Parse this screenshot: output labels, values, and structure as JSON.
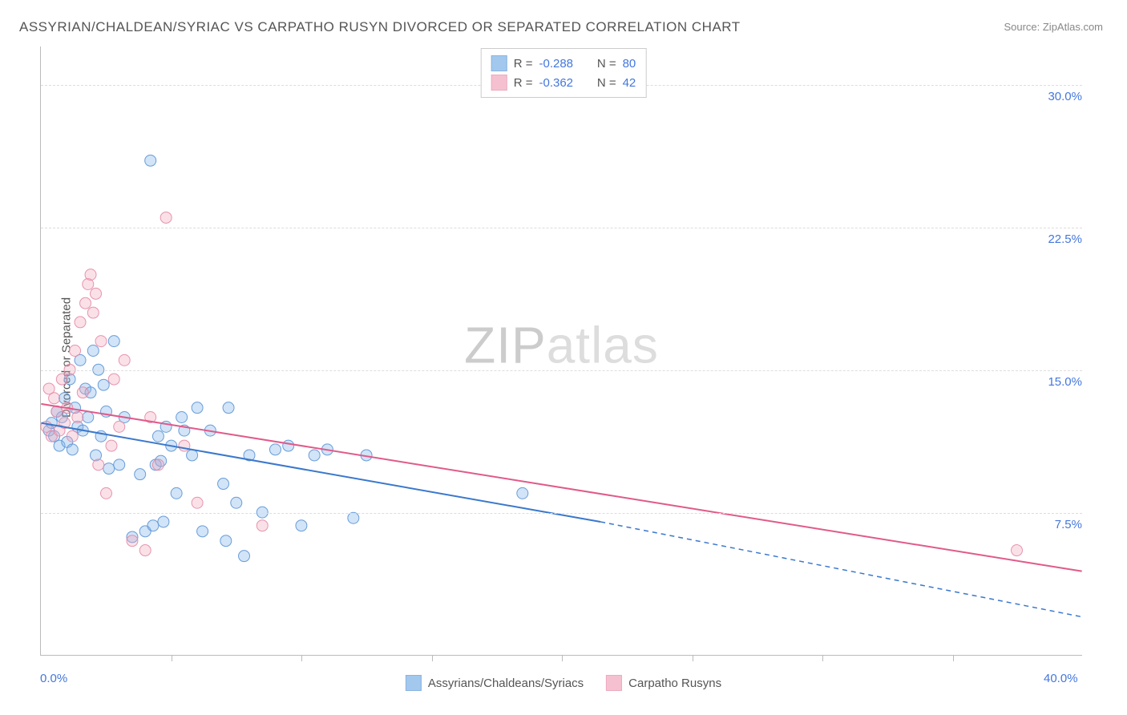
{
  "title": "ASSYRIAN/CHALDEAN/SYRIAC VS CARPATHO RUSYN DIVORCED OR SEPARATED CORRELATION CHART",
  "source": "Source: ZipAtlas.com",
  "watermark_zip": "ZIP",
  "watermark_atlas": "atlas",
  "ylabel": "Divorced or Separated",
  "chart": {
    "type": "scatter",
    "background_color": "#ffffff",
    "grid_color": "#dddddd",
    "axis_color": "#bbbbbb",
    "tick_label_color": "#4477dd",
    "label_color": "#555555",
    "label_fontsize": 15,
    "xlim": [
      0,
      40
    ],
    "ylim": [
      0,
      32
    ],
    "yticks": [
      {
        "value": 7.5,
        "label": "7.5%"
      },
      {
        "value": 15.0,
        "label": "15.0%"
      },
      {
        "value": 22.5,
        "label": "22.5%"
      },
      {
        "value": 30.0,
        "label": "30.0%"
      }
    ],
    "xtick_positions": [
      5,
      10,
      15,
      20,
      25,
      30,
      35
    ],
    "xaxis_left_label": "0.0%",
    "xaxis_right_label": "40.0%",
    "marker_radius": 7,
    "marker_fill_opacity": 0.35,
    "marker_stroke_opacity": 0.9,
    "line_width": 2,
    "series": [
      {
        "name": "Assyrians/Chaldeans/Syriacs",
        "color_fill": "#7db1e8",
        "color_stroke": "#5a93d6",
        "line_color": "#3b78cc",
        "R": "-0.288",
        "N": "80",
        "trend": {
          "x1": 0,
          "y1": 12.2,
          "x2_solid": 21.5,
          "y2_solid": 7.0,
          "x2": 40,
          "y2": 2.0,
          "dash_after_solid": true
        },
        "points": [
          [
            0.3,
            11.8
          ],
          [
            0.4,
            12.2
          ],
          [
            0.5,
            11.5
          ],
          [
            0.6,
            12.8
          ],
          [
            0.7,
            11.0
          ],
          [
            0.8,
            12.5
          ],
          [
            0.9,
            13.5
          ],
          [
            1.0,
            11.2
          ],
          [
            1.1,
            14.5
          ],
          [
            1.2,
            10.8
          ],
          [
            1.3,
            13.0
          ],
          [
            1.4,
            12.0
          ],
          [
            1.5,
            15.5
          ],
          [
            1.6,
            11.8
          ],
          [
            1.7,
            14.0
          ],
          [
            1.8,
            12.5
          ],
          [
            1.9,
            13.8
          ],
          [
            2.0,
            16.0
          ],
          [
            2.1,
            10.5
          ],
          [
            2.2,
            15.0
          ],
          [
            2.3,
            11.5
          ],
          [
            2.4,
            14.2
          ],
          [
            2.5,
            12.8
          ],
          [
            2.6,
            9.8
          ],
          [
            2.8,
            16.5
          ],
          [
            3.0,
            10.0
          ],
          [
            3.2,
            12.5
          ],
          [
            3.5,
            6.2
          ],
          [
            3.8,
            9.5
          ],
          [
            4.0,
            6.5
          ],
          [
            4.2,
            26.0
          ],
          [
            4.3,
            6.8
          ],
          [
            4.4,
            10.0
          ],
          [
            4.5,
            11.5
          ],
          [
            4.6,
            10.2
          ],
          [
            4.7,
            7.0
          ],
          [
            4.8,
            12.0
          ],
          [
            5.0,
            11.0
          ],
          [
            5.2,
            8.5
          ],
          [
            5.4,
            12.5
          ],
          [
            5.5,
            11.8
          ],
          [
            5.8,
            10.5
          ],
          [
            6.0,
            13.0
          ],
          [
            6.2,
            6.5
          ],
          [
            6.5,
            11.8
          ],
          [
            7.0,
            9.0
          ],
          [
            7.1,
            6.0
          ],
          [
            7.2,
            13.0
          ],
          [
            7.5,
            8.0
          ],
          [
            7.8,
            5.2
          ],
          [
            8.0,
            10.5
          ],
          [
            8.5,
            7.5
          ],
          [
            9.0,
            10.8
          ],
          [
            9.5,
            11.0
          ],
          [
            10.0,
            6.8
          ],
          [
            10.5,
            10.5
          ],
          [
            11.0,
            10.8
          ],
          [
            12.0,
            7.2
          ],
          [
            12.5,
            10.5
          ],
          [
            18.5,
            8.5
          ]
        ]
      },
      {
        "name": "Carpatho Rusyns",
        "color_fill": "#f2a8bd",
        "color_stroke": "#e688a5",
        "line_color": "#e05a8a",
        "R": "-0.362",
        "N": "42",
        "trend": {
          "x1": 0,
          "y1": 13.2,
          "x2_solid": 40,
          "y2_solid": 4.4,
          "x2": 40,
          "y2": 4.4,
          "dash_after_solid": false
        },
        "points": [
          [
            0.2,
            12.0
          ],
          [
            0.3,
            14.0
          ],
          [
            0.4,
            11.5
          ],
          [
            0.5,
            13.5
          ],
          [
            0.6,
            12.8
          ],
          [
            0.7,
            11.8
          ],
          [
            0.8,
            14.5
          ],
          [
            0.9,
            12.2
          ],
          [
            1.0,
            13.0
          ],
          [
            1.1,
            15.0
          ],
          [
            1.2,
            11.5
          ],
          [
            1.3,
            16.0
          ],
          [
            1.4,
            12.5
          ],
          [
            1.5,
            17.5
          ],
          [
            1.6,
            13.8
          ],
          [
            1.7,
            18.5
          ],
          [
            1.8,
            19.5
          ],
          [
            1.9,
            20.0
          ],
          [
            2.0,
            18.0
          ],
          [
            2.1,
            19.0
          ],
          [
            2.2,
            10.0
          ],
          [
            2.3,
            16.5
          ],
          [
            2.5,
            8.5
          ],
          [
            2.7,
            11.0
          ],
          [
            2.8,
            14.5
          ],
          [
            3.0,
            12.0
          ],
          [
            3.2,
            15.5
          ],
          [
            3.5,
            6.0
          ],
          [
            4.0,
            5.5
          ],
          [
            4.2,
            12.5
          ],
          [
            4.5,
            10.0
          ],
          [
            4.8,
            23.0
          ],
          [
            5.5,
            11.0
          ],
          [
            6.0,
            8.0
          ],
          [
            8.5,
            6.8
          ],
          [
            37.5,
            5.5
          ]
        ]
      }
    ],
    "legend_top": {
      "R_label": "R =",
      "N_label": "N ="
    },
    "legend_bottom": [
      {
        "label": "Assyrians/Chaldeans/Syriacs",
        "fill": "#7db1e8",
        "stroke": "#5a93d6"
      },
      {
        "label": "Carpatho Rusyns",
        "fill": "#f2a8bd",
        "stroke": "#e688a5"
      }
    ]
  }
}
